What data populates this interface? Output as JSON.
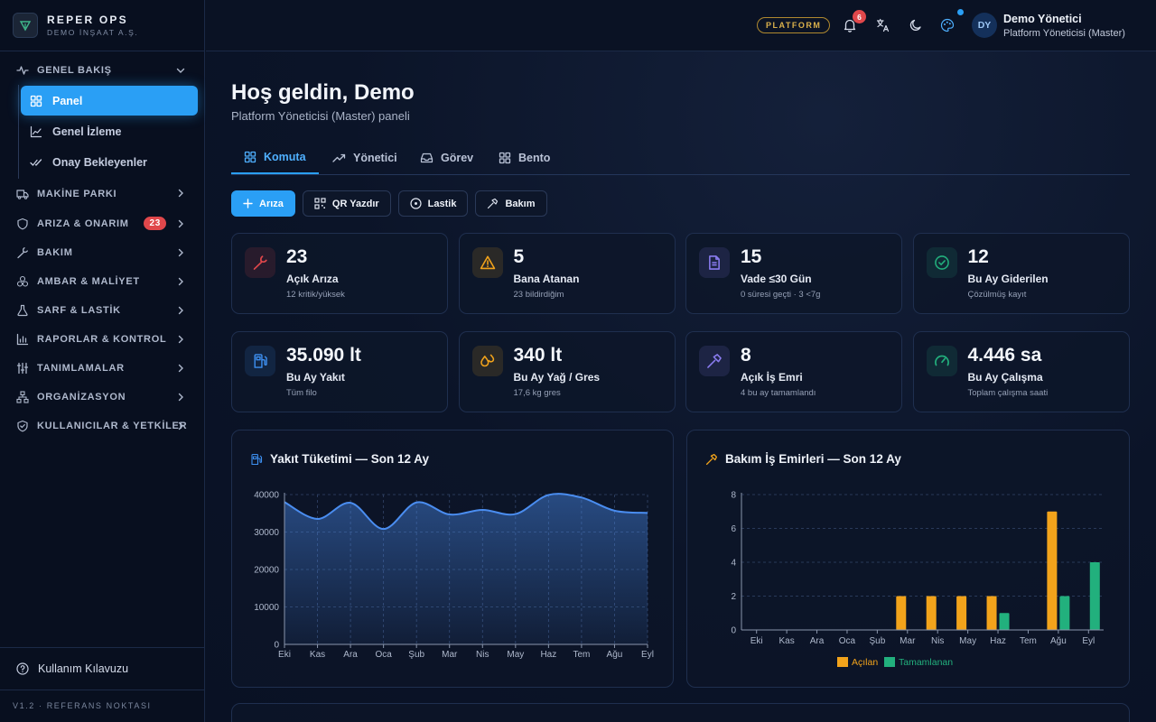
{
  "brand": {
    "name": "REPER OPS",
    "subtitle": "DEMO İNŞAAT A.Ş."
  },
  "sidebar": {
    "overview": {
      "label": "GENEL BAKIŞ",
      "items": [
        {
          "label": "Panel",
          "icon": "grid-icon",
          "active": true
        },
        {
          "label": "Genel İzleme",
          "icon": "line-chart-icon"
        },
        {
          "label": "Onay Bekleyenler",
          "icon": "check-double-icon"
        }
      ]
    },
    "groups": [
      {
        "label": "MAKİNE PARKI",
        "icon": "truck-icon"
      },
      {
        "label": "ARIZA & ONARIM",
        "icon": "shield-icon",
        "badge": "23"
      },
      {
        "label": "BAKIM",
        "icon": "wrench-icon"
      },
      {
        "label": "AMBAR & MALİYET",
        "icon": "boxes-icon"
      },
      {
        "label": "SARF & LASTİK",
        "icon": "flask-icon"
      },
      {
        "label": "RAPORLAR & KONTROL",
        "icon": "bar-chart-icon"
      },
      {
        "label": "TANIMLAMALAR",
        "icon": "sliders-icon"
      },
      {
        "label": "ORGANİZASYON",
        "icon": "org-chart-icon"
      },
      {
        "label": "KULLANICILAR & YETKİLER",
        "icon": "shield-check-icon"
      }
    ],
    "help": "Kullanım Kılavuzu",
    "version": "V1.2 · REFERANS NOKTASI"
  },
  "topbar": {
    "platform": "PLATFORM",
    "notifications": "6",
    "user_initials": "DY",
    "user_name": "Demo Yönetici",
    "user_role": "Platform Yöneticisi (Master)"
  },
  "main": {
    "greeting": "Hoş geldin, Demo",
    "subtitle": "Platform Yöneticisi (Master) paneli",
    "tabs": [
      {
        "label": "Komuta",
        "icon": "grid-icon",
        "active": true
      },
      {
        "label": "Yönetici",
        "icon": "trend-icon"
      },
      {
        "label": "Görev",
        "icon": "inbox-icon"
      },
      {
        "label": "Bento",
        "icon": "grid-icon"
      }
    ],
    "actions": [
      {
        "label": "Arıza",
        "icon": "plus-icon",
        "primary": true
      },
      {
        "label": "QR Yazdır",
        "icon": "qr-icon"
      },
      {
        "label": "Lastik",
        "icon": "tire-icon"
      },
      {
        "label": "Bakım",
        "icon": "hammer-icon"
      }
    ],
    "stats": [
      {
        "value": "23",
        "label": "Açık Arıza",
        "sub": "12 kritik/yüksek",
        "icon": "wrench-icon",
        "color": "#e0474b"
      },
      {
        "value": "5",
        "label": "Bana Atanan",
        "sub": "23 bildirdiğim",
        "icon": "alert-triangle-icon",
        "color": "#f2a31b"
      },
      {
        "value": "15",
        "label": "Vade ≤30 Gün",
        "sub": "0 süresi geçti · 3 <7g",
        "icon": "document-icon",
        "color": "#8a7cf0"
      },
      {
        "value": "12",
        "label": "Bu Ay Giderilen",
        "sub": "Çözülmüş kayıt",
        "icon": "check-circle-icon",
        "color": "#22b07d"
      },
      {
        "value": "35.090 lt",
        "label": "Bu Ay Yakıt",
        "sub": "Tüm filo",
        "icon": "fuel-icon",
        "color": "#3d8ff0"
      },
      {
        "value": "340 lt",
        "label": "Bu Ay Yağ / Gres",
        "sub": "17,6 kg gres",
        "icon": "droplets-icon",
        "color": "#f2a31b"
      },
      {
        "value": "8",
        "label": "Açık İş Emri",
        "sub": "4 bu ay tamamlandı",
        "icon": "hammer-icon",
        "color": "#8a7cf0"
      },
      {
        "value": "4.446 sa",
        "label": "Bu Ay Çalışma",
        "sub": "Toplam çalışma saati",
        "icon": "gauge-icon",
        "color": "#22b07d"
      }
    ],
    "fuel_chart_title": "Yakıt Tüketimi — Son 12 Ay",
    "maint_chart_title": "Bakım İş Emirleri — Son 12 Ay"
  },
  "chart_data": [
    {
      "type": "area",
      "title": "Yakıt Tüketimi — Son 12 Ay",
      "categories": [
        "Eki",
        "Kas",
        "Ara",
        "Oca",
        "Şub",
        "Mar",
        "Nis",
        "May",
        "Haz",
        "Tem",
        "Ağu",
        "Eyl"
      ],
      "values": [
        38000,
        33500,
        37800,
        30800,
        37900,
        34700,
        35900,
        34800,
        39900,
        39200,
        35700,
        35100
      ],
      "ylim": [
        0,
        40000
      ],
      "yticks": [
        0,
        10000,
        20000,
        30000,
        40000
      ],
      "grid": true,
      "color": "#4a8df0"
    },
    {
      "type": "bar",
      "title": "Bakım İş Emirleri — Son 12 Ay",
      "categories": [
        "Eki",
        "Kas",
        "Ara",
        "Oca",
        "Şub",
        "Mar",
        "Nis",
        "May",
        "Haz",
        "Tem",
        "Ağu",
        "Eyl"
      ],
      "series": [
        {
          "name": "Açılan",
          "color": "#f2a31b",
          "values": [
            0,
            0,
            0,
            0,
            0,
            2,
            2,
            2,
            2,
            0,
            7,
            0
          ]
        },
        {
          "name": "Tamamlanan",
          "color": "#22b07d",
          "values": [
            0,
            0,
            0,
            0,
            0,
            0,
            0,
            0,
            1,
            0,
            2,
            4
          ]
        }
      ],
      "ylim": [
        0,
        8
      ],
      "yticks": [
        0,
        2,
        4,
        6,
        8
      ],
      "grid": true,
      "legend": "bottom"
    }
  ]
}
